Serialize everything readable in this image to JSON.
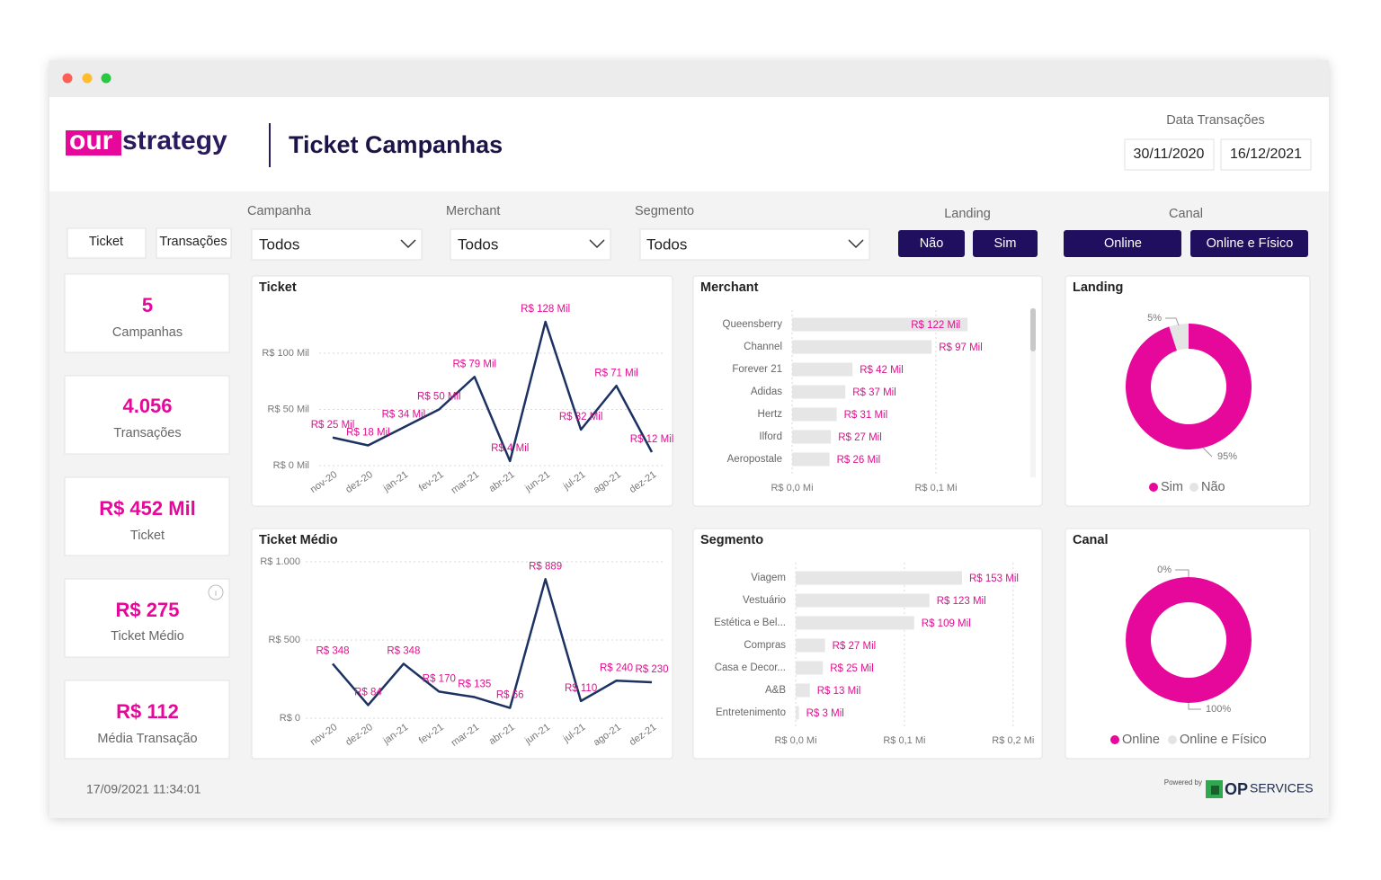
{
  "header": {
    "logo_highlight": "our",
    "logo_text": "strategy",
    "title": "Ticket Campanhas",
    "date_label": "Data Transações",
    "date_start": "30/11/2020",
    "date_end": "16/12/2021"
  },
  "tabs": [
    "Ticket",
    "Transações"
  ],
  "filters": [
    {
      "label": "Campanha",
      "value": "Todos"
    },
    {
      "label": "Merchant",
      "value": "Todos"
    },
    {
      "label": "Segmento",
      "value": "Todos"
    }
  ],
  "toggles": [
    {
      "label": "Landing",
      "options": [
        "Não",
        "Sim"
      ]
    },
    {
      "label": "Canal",
      "options": [
        "Online",
        "Online e Físico"
      ]
    }
  ],
  "kpis": [
    {
      "value": "5",
      "label": "Campanhas"
    },
    {
      "value": "4.056",
      "label": "Transações"
    },
    {
      "value": "R$ 452 Mil",
      "label": "Ticket"
    },
    {
      "value": "R$ 275",
      "label": "Ticket Médio"
    },
    {
      "value": "R$ 112",
      "label": "Média Transação"
    }
  ],
  "chart_data": [
    {
      "type": "line",
      "title": "Ticket",
      "categories": [
        "nov-20",
        "dez-20",
        "jan-21",
        "fev-21",
        "mar-21",
        "abr-21",
        "jun-21",
        "jul-21",
        "ago-21",
        "dez-21"
      ],
      "values": [
        25000,
        18000,
        34000,
        50000,
        79000,
        4000,
        128000,
        32000,
        71000,
        12000
      ],
      "value_labels": [
        "R$ 25 Mil",
        "R$ 18 Mil",
        "R$ 34 Mil",
        "R$ 50 Mil",
        "R$ 79 Mil",
        "R$ 4 Mil",
        "R$ 128 Mil",
        "R$ 32 Mil",
        "R$ 71 Mil",
        "R$ 12 Mil"
      ],
      "color": "#1b3262",
      "ylim": [
        0,
        130000
      ],
      "yticks": [
        {
          "value": 0,
          "label": "R$ 0 Mil"
        },
        {
          "value": 50000,
          "label": "R$ 50 Mil"
        },
        {
          "value": 100000,
          "label": "R$ 100 Mil"
        }
      ],
      "grid": true
    },
    {
      "type": "bar",
      "orientation": "horizontal",
      "title": "Merchant",
      "categories": [
        "Queensberry",
        "Channel",
        "Forever 21",
        "Adidas",
        "Hertz",
        "Ilford",
        "Aeropostale"
      ],
      "values": [
        122000,
        97000,
        42000,
        37000,
        31000,
        27000,
        26000
      ],
      "value_labels": [
        "R$ 122 Mil",
        "R$ 97 Mil",
        "R$ 42 Mil",
        "R$ 37 Mil",
        "R$ 31 Mil",
        "R$ 27 Mil",
        "R$ 26 Mil"
      ],
      "color": "#e6e6e6",
      "xlim": [
        0,
        165000
      ],
      "xticks": [
        {
          "value": 0,
          "label": "R$ 0,0 Mi"
        },
        {
          "value": 100000,
          "label": "R$ 0,1 Mi"
        }
      ],
      "grid": true
    },
    {
      "type": "pie",
      "title": "Landing",
      "categories": [
        "Sim",
        "Não"
      ],
      "values": [
        95,
        5
      ],
      "value_labels": [
        "95%",
        "5%"
      ],
      "colors": [
        "#e6089b",
        "#e4e4e4"
      ],
      "legend": "bottom"
    },
    {
      "type": "line",
      "title": "Ticket Médio",
      "categories": [
        "nov-20",
        "dez-20",
        "jan-21",
        "fev-21",
        "mar-21",
        "abr-21",
        "jun-21",
        "jul-21",
        "ago-21",
        "dez-21"
      ],
      "values": [
        348,
        84,
        348,
        170,
        135,
        66,
        889,
        110,
        240,
        230
      ],
      "value_labels": [
        "R$ 348",
        "R$ 84",
        "R$ 348",
        "R$ 170",
        "R$ 135",
        "R$ 66",
        "R$ 889",
        "R$ 110",
        "R$ 240",
        "R$ 230"
      ],
      "color": "#1b3262",
      "ylim": [
        0,
        1000
      ],
      "yticks": [
        {
          "value": 0,
          "label": "R$ 0"
        },
        {
          "value": 500,
          "label": "R$ 500"
        },
        {
          "value": 1000,
          "label": "R$ 1.000"
        }
      ],
      "grid": true
    },
    {
      "type": "bar",
      "orientation": "horizontal",
      "title": "Segmento",
      "categories": [
        "Viagem",
        "Vestuário",
        "Estética e Bel...",
        "Compras",
        "Casa e Decor...",
        "A&B",
        "Entretenimento"
      ],
      "values": [
        153000,
        123000,
        109000,
        27000,
        25000,
        13000,
        3000
      ],
      "value_labels": [
        "R$ 153 Mil",
        "R$ 123 Mil",
        "R$ 109 Mil",
        "R$ 27 Mil",
        "R$ 25 Mil",
        "R$ 13 Mil",
        "R$ 3 Mil"
      ],
      "color": "#e6e6e6",
      "xlim": [
        0,
        220000
      ],
      "xticks": [
        {
          "value": 0,
          "label": "R$ 0,0 Mi"
        },
        {
          "value": 100000,
          "label": "R$ 0,1 Mi"
        },
        {
          "value": 200000,
          "label": "R$ 0,2 Mi"
        }
      ],
      "grid": true
    },
    {
      "type": "pie",
      "title": "Canal",
      "categories": [
        "Online",
        "Online e Físico"
      ],
      "values": [
        100,
        0
      ],
      "value_labels": [
        "100%",
        "0%"
      ],
      "colors": [
        "#e6089b",
        "#e4e4e4"
      ],
      "legend": "bottom"
    }
  ],
  "footer": {
    "timestamp": "17/09/2021 11:34:01",
    "powered_by": "Powered by",
    "brand_bold": "OP",
    "brand_rest": "SERVICES"
  }
}
